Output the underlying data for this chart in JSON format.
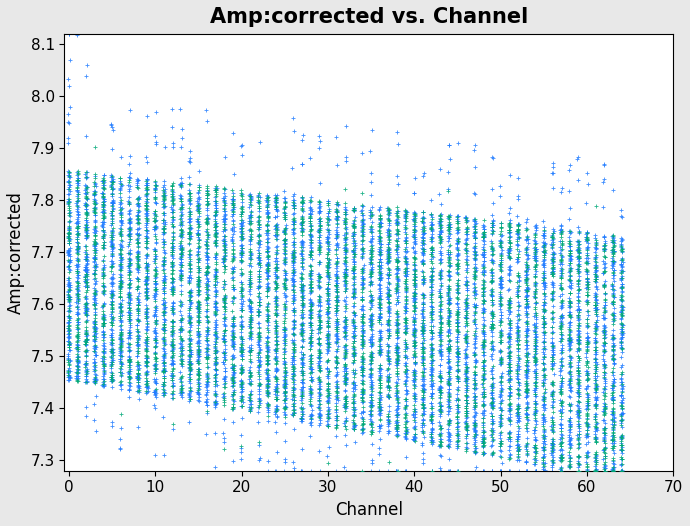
{
  "title": "Amp:corrected vs. Channel",
  "xlabel": "Channel",
  "ylabel": "Amp:corrected",
  "xlim": [
    -0.5,
    70
  ],
  "ylim": [
    7.28,
    8.12
  ],
  "yticks": [
    7.3,
    7.4,
    7.5,
    7.6,
    7.7,
    7.8,
    7.9,
    8.0,
    8.1
  ],
  "xticks": [
    0,
    10,
    20,
    30,
    40,
    50,
    60,
    70
  ],
  "n_channels": 65,
  "seed": 42,
  "blue_color": "#1f7bff",
  "green_color": "#00a878",
  "bg_color": "#e8e8e8",
  "plot_bg_color": "#ffffff",
  "title_fontsize": 15,
  "label_fontsize": 12,
  "n_pts_blue": 120,
  "n_pts_green": 60
}
